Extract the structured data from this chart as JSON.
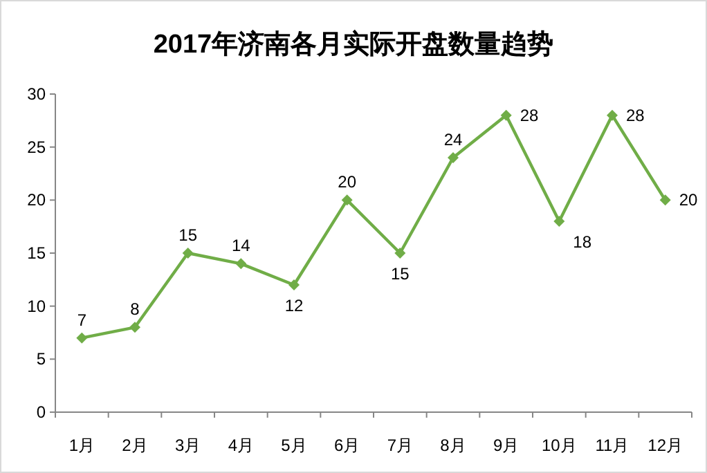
{
  "chart_data": {
    "type": "line",
    "title": "2017年济南各月实际开盘数量趋势",
    "categories": [
      "1月",
      "2月",
      "3月",
      "4月",
      "5月",
      "6月",
      "7月",
      "8月",
      "9月",
      "10月",
      "11月",
      "12月"
    ],
    "values": [
      7,
      8,
      15,
      14,
      12,
      20,
      15,
      24,
      28,
      18,
      28,
      20
    ],
    "color": "#70ad47",
    "ylim": [
      0,
      30
    ],
    "yticks": [
      0,
      5,
      10,
      15,
      20,
      25,
      30
    ],
    "marker": "diamond",
    "line_style": "solid",
    "data_labels": true
  }
}
